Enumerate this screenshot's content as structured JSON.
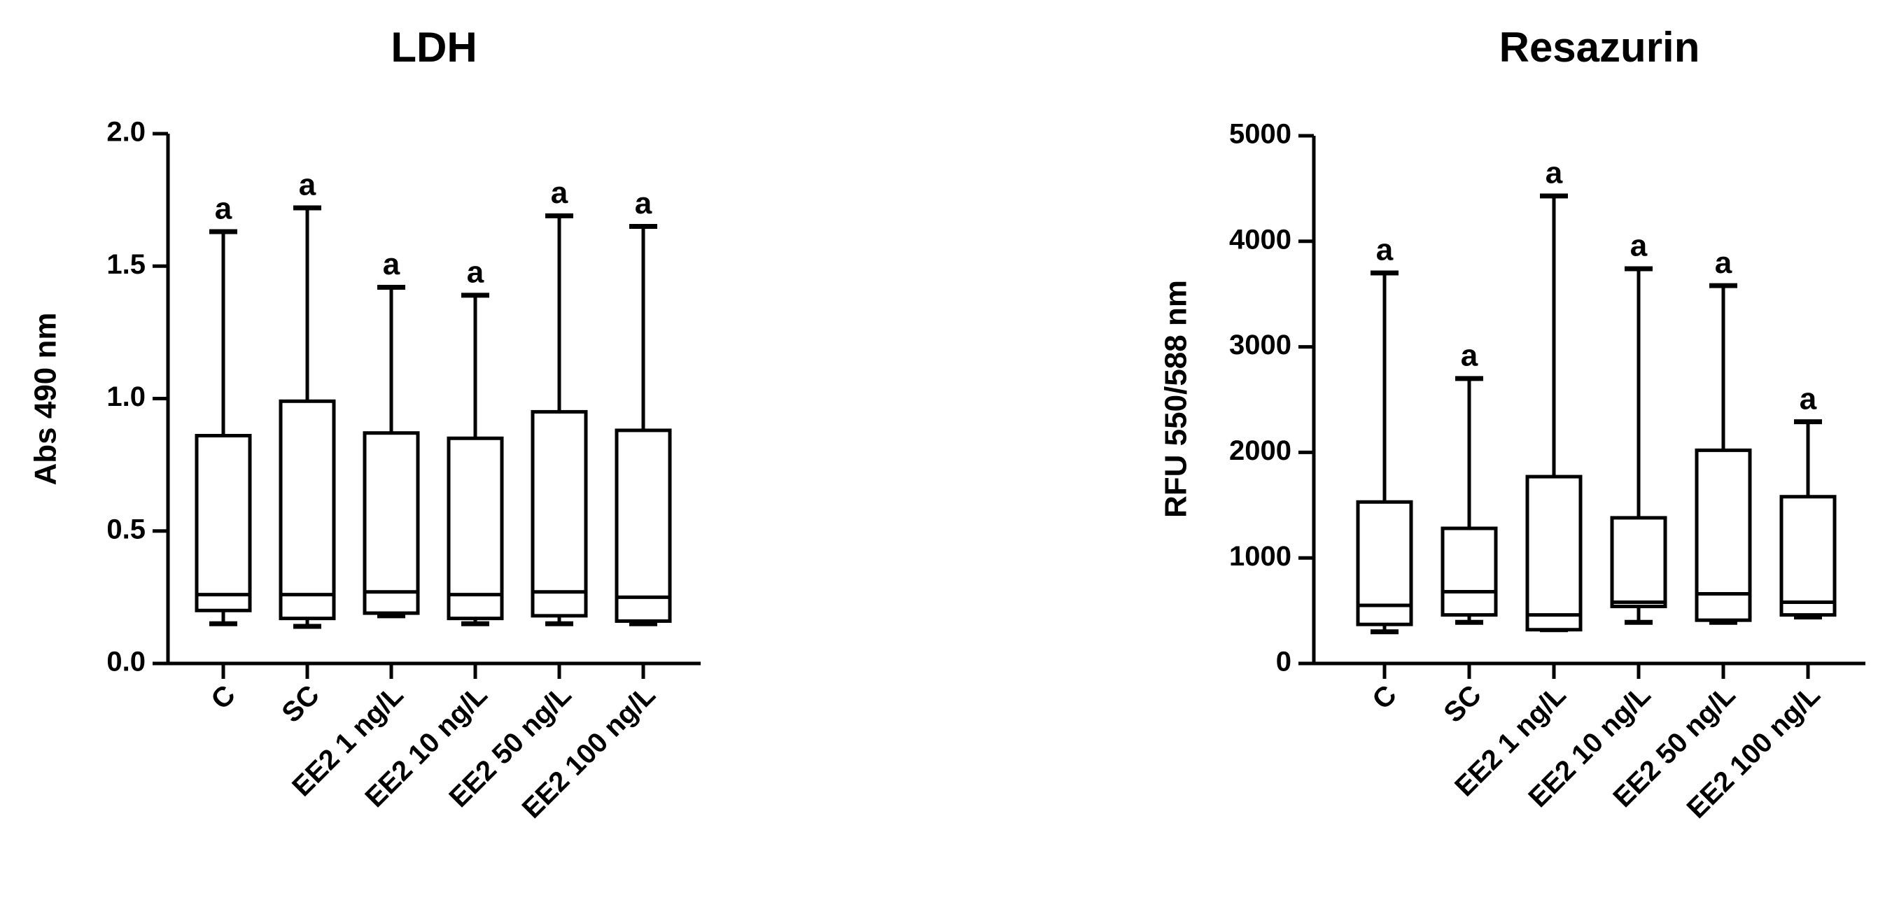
{
  "chart_data": [
    {
      "type": "box",
      "title": "LDH",
      "y_label": "Abs 490 nm",
      "categories": [
        "C",
        "SC",
        "EE2 1 ng/L",
        "EE2 10 ng/L",
        "EE2 50 ng/L",
        "EE2 100 ng/L"
      ],
      "boxes": [
        {
          "min": 0.15,
          "q1": 0.2,
          "median": 0.26,
          "q3": 0.86,
          "max": 1.63
        },
        {
          "min": 0.14,
          "q1": 0.17,
          "median": 0.26,
          "q3": 0.99,
          "max": 1.72
        },
        {
          "min": 0.18,
          "q1": 0.19,
          "median": 0.27,
          "q3": 0.87,
          "max": 1.42
        },
        {
          "min": 0.15,
          "q1": 0.17,
          "median": 0.26,
          "q3": 0.85,
          "max": 1.39
        },
        {
          "min": 0.15,
          "q1": 0.18,
          "median": 0.27,
          "q3": 0.95,
          "max": 1.69
        },
        {
          "min": 0.15,
          "q1": 0.16,
          "median": 0.25,
          "q3": 0.88,
          "max": 1.65
        }
      ],
      "annotations": [
        "a",
        "a",
        "a",
        "a",
        "a",
        "a"
      ],
      "color": "#000000",
      "ylim": [
        0,
        2
      ],
      "yticks": [
        {
          "value": 0,
          "label": "0.0"
        },
        0.5,
        {
          "value": 1,
          "label": "1.0"
        },
        1.5,
        {
          "value": 2,
          "label": "2.0"
        }
      ]
    },
    {
      "type": "box",
      "title": "Resazurin",
      "y_label": "RFU 550/588 nm",
      "categories": [
        "C",
        "SC",
        "EE2 1 ng/L",
        "EE2 10 ng/L",
        "EE2 50 ng/L",
        "EE2 100 ng/L"
      ],
      "boxes": [
        {
          "min": 300,
          "q1": 370,
          "median": 550,
          "q3": 1530,
          "max": 3700
        },
        {
          "min": 390,
          "q1": 460,
          "median": 680,
          "q3": 1280,
          "max": 2700
        },
        {
          "min": 320,
          "q1": 320,
          "median": 460,
          "q3": 1770,
          "max": 4430
        },
        {
          "min": 390,
          "q1": 540,
          "median": 580,
          "q3": 1380,
          "max": 3740
        },
        {
          "min": 390,
          "q1": 410,
          "median": 660,
          "q3": 2020,
          "max": 3580
        },
        {
          "min": 440,
          "q1": 460,
          "median": 580,
          "q3": 1580,
          "max": 2290
        }
      ],
      "annotations": [
        "a",
        "a",
        "a",
        "a",
        "a",
        "a"
      ],
      "color": "#000000",
      "ylim": [
        0,
        5000
      ],
      "yticks": [
        0,
        1000,
        2000,
        3000,
        4000,
        5000
      ]
    }
  ]
}
